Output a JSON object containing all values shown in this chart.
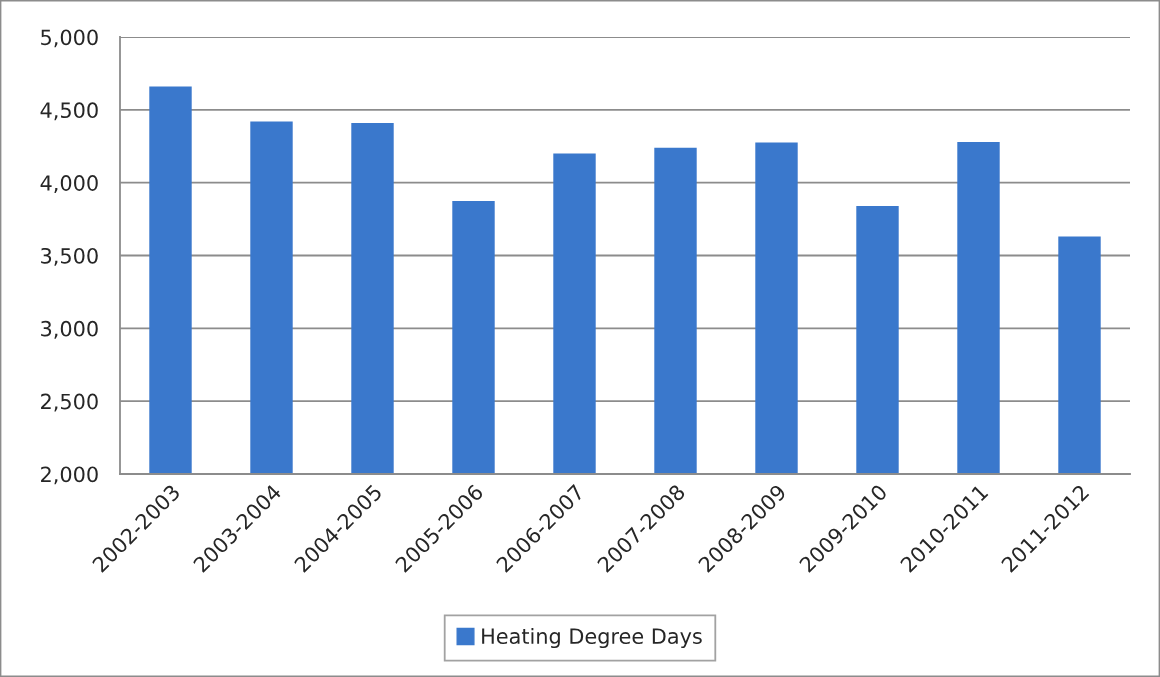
{
  "chart_data": {
    "type": "bar",
    "categories": [
      "2002-2003",
      "2003-2004",
      "2004-2005",
      "2005-2006",
      "2006-2007",
      "2007-2008",
      "2008-2009",
      "2009-2010",
      "2010-2011",
      "2011-2012"
    ],
    "series": [
      {
        "name": "Heating Degree Days",
        "color": "#3a78cc",
        "values": [
          4660,
          4420,
          4410,
          3875,
          4200,
          4240,
          4275,
          3840,
          4280,
          3630
        ]
      }
    ],
    "ylim": [
      2000,
      5000
    ],
    "yticks": [
      {
        "value": 2000,
        "label": "2,000"
      },
      {
        "value": 2500,
        "label": "2,500"
      },
      {
        "value": 3000,
        "label": "3,000"
      },
      {
        "value": 3500,
        "label": "3,500"
      },
      {
        "value": 4000,
        "label": "4,000"
      },
      {
        "value": 4500,
        "label": "4,500"
      },
      {
        "value": 5000,
        "label": "5,000"
      }
    ],
    "grid": "y",
    "legend": "bottom"
  }
}
